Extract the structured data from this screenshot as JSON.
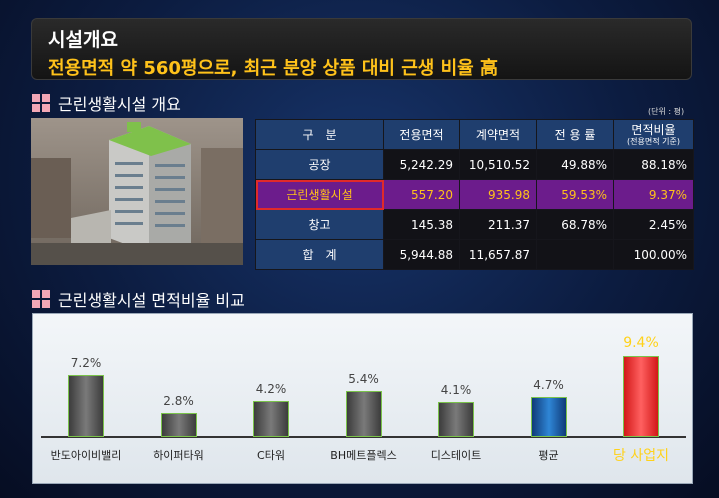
{
  "header": {
    "title": "시설개요",
    "subtitle": "전용면적 약 560평으로, 최근 분양 상품 대비 근생 비율 高"
  },
  "section1": {
    "title": "근린생활시설 개요",
    "unit": "(단위 : 평)"
  },
  "table": {
    "headers": [
      "구　분",
      "전용면적",
      "계약면적",
      "전 용 률"
    ],
    "last_header_main": "면적비율",
    "last_header_sub": "(전용면적 기준)",
    "rows": [
      [
        "공장",
        "5,242.29",
        "10,510.52",
        "49.88%",
        "88.18%"
      ],
      [
        "근린생활시설",
        "557.20",
        "935.98",
        "59.53%",
        "9.37%"
      ],
      [
        "창고",
        "145.38",
        "211.37",
        "68.78%",
        "2.45%"
      ],
      [
        "합　계",
        "5,944.88",
        "11,657.87",
        "",
        "100.00%"
      ]
    ],
    "highlight_row": 1
  },
  "section2": {
    "title": "근린생활시설 면적비율 비교"
  },
  "colors": {
    "header_text": "#ffc21a",
    "highlight_row": "#6c1c8c",
    "bar_gray": "#5a5a5a",
    "bar_avg": "#1f64b0",
    "bar_target": "#ff3030"
  },
  "chart_data": {
    "type": "bar",
    "categories": [
      "반도아이비밸리",
      "하이퍼타워",
      "C타워",
      "BH메트플렉스",
      "디스테이트",
      "평균",
      "당 사업지"
    ],
    "values": [
      7.2,
      2.8,
      4.2,
      5.4,
      4.1,
      4.7,
      9.4
    ],
    "value_labels": [
      "7.2%",
      "2.8%",
      "4.2%",
      "5.4%",
      "4.1%",
      "4.7%",
      "9.4%"
    ],
    "styles": [
      "gray",
      "gray",
      "gray",
      "gray",
      "gray",
      "blue",
      "red"
    ],
    "ylim": [
      0,
      10
    ]
  }
}
